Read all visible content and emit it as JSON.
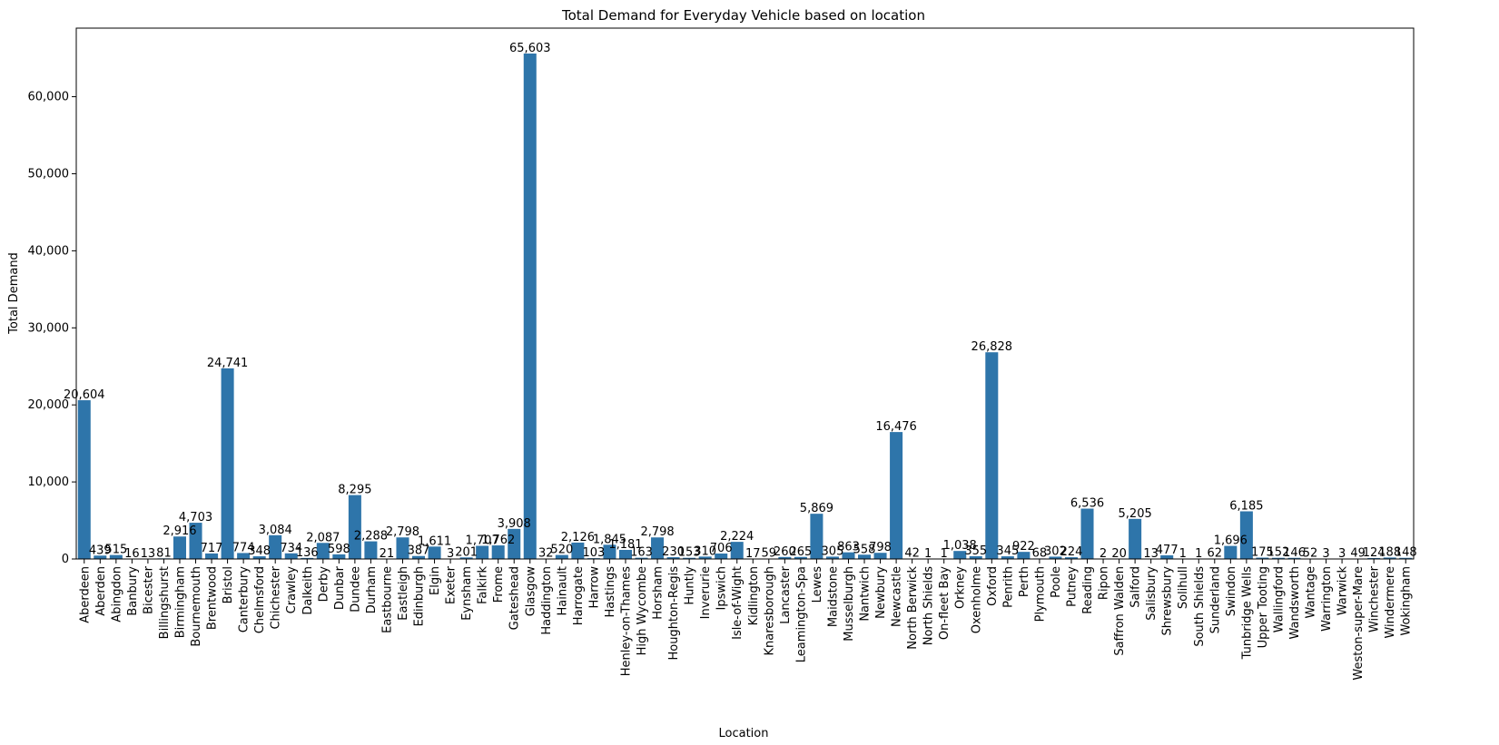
{
  "chart_data": {
    "type": "bar",
    "title": "Total Demand for Everyday Vehicle based on location",
    "xlabel": "Location",
    "ylabel": "Total Demand",
    "ylim": [
      0,
      68900
    ],
    "yticks": [
      0,
      10000,
      20000,
      30000,
      40000,
      50000,
      60000
    ],
    "ytick_labels": [
      "0",
      "10,000",
      "20,000",
      "30,000",
      "40,000",
      "50,000",
      "60,000"
    ],
    "bar_color": "#2e75aa",
    "grid": false,
    "categories": [
      "Aberdeen",
      "Aberden",
      "Abingdon",
      "Banbury",
      "Bicester",
      "Billingshurst",
      "Birmingham",
      "Bournemouth",
      "Brentwood",
      "Bristol",
      "Canterbury",
      "Chelmsford",
      "Chichester",
      "Crawley",
      "Dalkeith",
      "Derby",
      "Dunbar",
      "Dundee",
      "Durham",
      "Eastbourne",
      "Eastleigh",
      "Edinburgh",
      "Elgin",
      "Exeter",
      "Eynsham",
      "Falkirk",
      "Frome",
      "Gateshead",
      "Glasgow",
      "Haddington",
      "Hainault",
      "Harrogate",
      "Harrow",
      "Hastings",
      "Henley-on-Thames",
      "High Wycombe",
      "Horsham",
      "Houghton-Regis",
      "Huntly",
      "Inverurie",
      "Ipswich",
      "Isle-of-Wight",
      "Kidlington",
      "Knaresborough",
      "Lancaster",
      "Leamington-Spa",
      "Lewes",
      "Maidstone",
      "Musselburgh",
      "Nantwich",
      "Newbury",
      "Newcastle",
      "North Berwick",
      "North Shields",
      "On-fleet Bay",
      "Orkney",
      "Oxenholme",
      "Oxford",
      "Penrith",
      "Perth",
      "Plymouth",
      "Poole",
      "Putney",
      "Reading",
      "Ripon",
      "Saffron Walden",
      "Salford",
      "Salisbury",
      "Shrewsbury",
      "Solihull",
      "South Shields",
      "Sunderland",
      "Swindon",
      "Tunbridge Wells",
      "Upper Tooting",
      "Wallingford",
      "Wandsworth",
      "Wantage",
      "Warrington",
      "Warwick",
      "Weston-super-Mare",
      "Winchester",
      "Windermere",
      "Wokingham"
    ],
    "values": [
      20604,
      439,
      515,
      16,
      13,
      81,
      2916,
      4703,
      717,
      24741,
      774,
      348,
      3084,
      734,
      136,
      2087,
      598,
      8295,
      2288,
      21,
      2798,
      387,
      1611,
      3,
      201,
      1707,
      1762,
      3908,
      65603,
      32,
      520,
      2126,
      103,
      1845,
      1181,
      163,
      2798,
      230,
      153,
      310,
      706,
      2224,
      17,
      59,
      260,
      265,
      5869,
      305,
      863,
      558,
      798,
      16476,
      42,
      1,
      1,
      1038,
      355,
      26828,
      345,
      922,
      68,
      302,
      224,
      6536,
      2,
      20,
      5205,
      13,
      477,
      1,
      1,
      62,
      1696,
      6185,
      175,
      152,
      146,
      52,
      3,
      3,
      49,
      124,
      188,
      148
    ],
    "value_labels": [
      "20,604",
      "439",
      "515",
      "16",
      "13",
      "81",
      "2,916",
      "4,703",
      "717",
      "24,741",
      "774",
      "348",
      "3,084",
      "734",
      "136",
      "2,087",
      "598",
      "8,295",
      "2,288",
      "21",
      "2,798",
      "387",
      "1,611",
      "3",
      "201",
      "1,707",
      "1,762",
      "3,908",
      "65,603",
      "32",
      "520",
      "2,126",
      "103",
      "1,845",
      "1,181",
      "163",
      "2,798",
      "230",
      "153",
      "310",
      "706",
      "2,224",
      "17",
      "59",
      "260",
      "265",
      "5,869",
      "305",
      "863",
      "558",
      "798",
      "16,476",
      "42",
      "1",
      "1",
      "1,038",
      "355",
      "26,828",
      "345",
      "922",
      "68",
      "302",
      "224",
      "6,536",
      "2",
      "20",
      "5,205",
      "13",
      "477",
      "1",
      "1",
      "62",
      "1,696",
      "6,185",
      "175",
      "152",
      "146",
      "52",
      "3",
      "3",
      "49",
      "124",
      "188",
      "148"
    ]
  }
}
